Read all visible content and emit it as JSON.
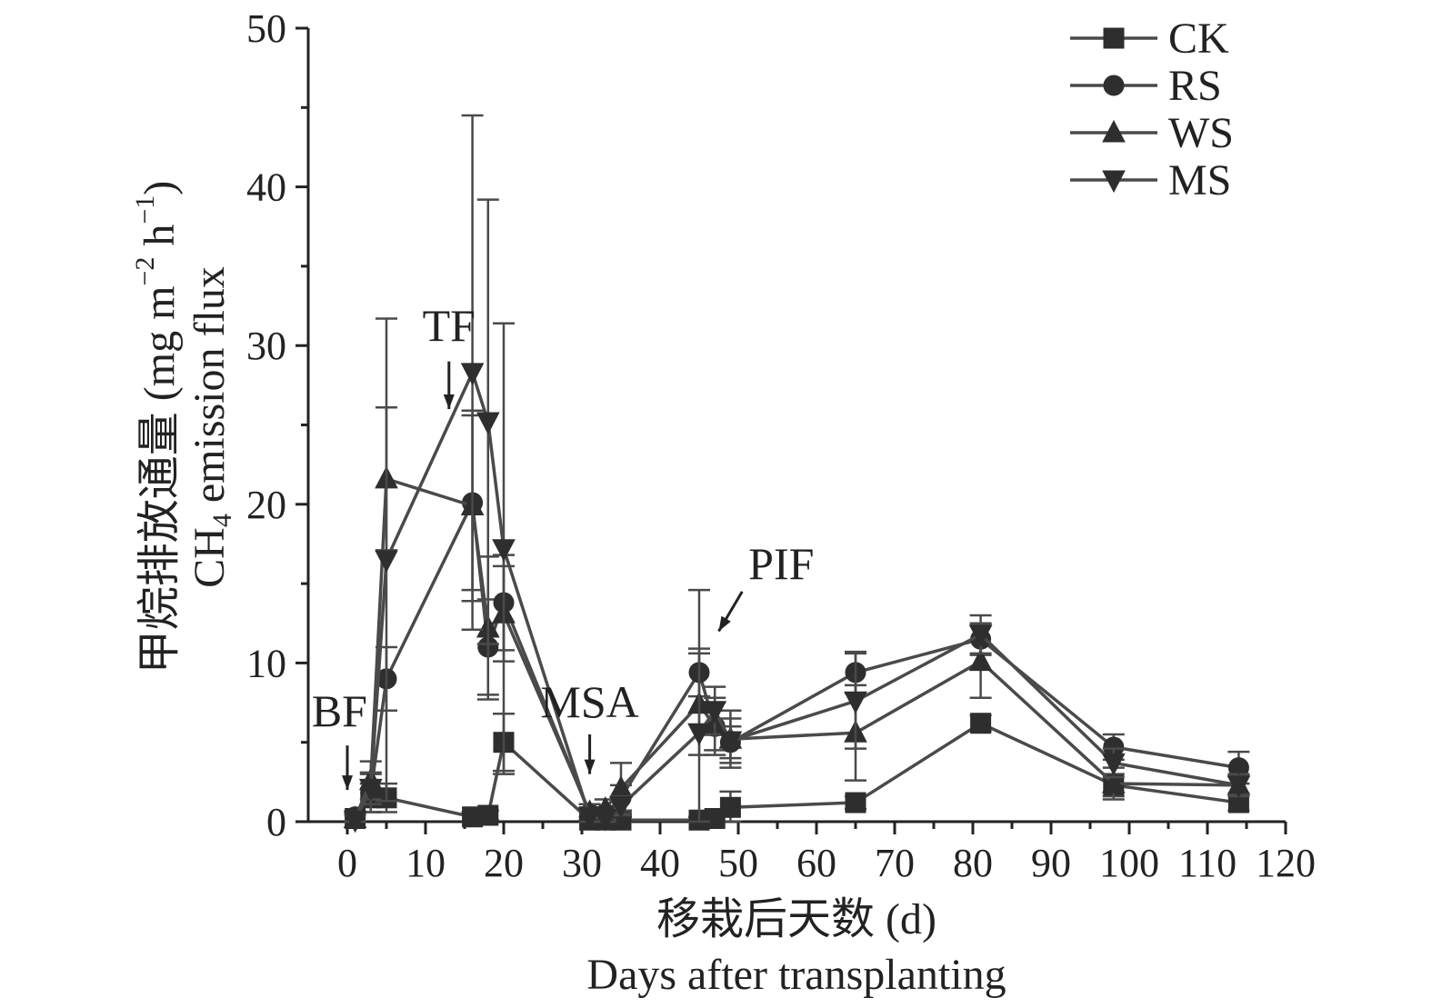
{
  "chart_data": {
    "type": "line",
    "xlabel_cn": "移栽后天数 (d)",
    "xlabel_en": "Days after transplanting",
    "ylabel_cn": "甲烷排放通量 (mg m",
    "ylabel_en": "CH",
    "ylabel_sub": "4",
    "ylabel_en_rest": " emission flux",
    "ylabel_sup1": "−2",
    "ylabel_mid": " h",
    "ylabel_sup2": "−1",
    "ylabel_close": ")",
    "xlim": [
      -5,
      120
    ],
    "ylim": [
      0,
      50
    ],
    "xticks": [
      0,
      10,
      20,
      30,
      40,
      50,
      60,
      70,
      80,
      90,
      100,
      110,
      120
    ],
    "yticks": [
      0,
      10,
      20,
      30,
      40,
      50
    ],
    "legend_position": "top-right",
    "series": [
      {
        "name": "CK",
        "marker": "square",
        "points": [
          {
            "x": 1,
            "y": 0.2,
            "err": 0.3
          },
          {
            "x": 3,
            "y": 1.5,
            "err": 0.9
          },
          {
            "x": 5,
            "y": 1.5,
            "err": 0.9
          },
          {
            "x": 16,
            "y": 0.3,
            "err": 0.3
          },
          {
            "x": 18,
            "y": 0.4,
            "err": 0.3
          },
          {
            "x": 20,
            "y": 5.0,
            "err": 1.8
          },
          {
            "x": 31,
            "y": 0.1,
            "err": 0.2
          },
          {
            "x": 33,
            "y": 0.1,
            "err": 0.2
          },
          {
            "x": 35,
            "y": 0.1,
            "err": 0.2
          },
          {
            "x": 45,
            "y": 0.1,
            "err": 0.2
          },
          {
            "x": 47,
            "y": 0.2,
            "err": 0.2
          },
          {
            "x": 49,
            "y": 0.9,
            "err": 1.0
          },
          {
            "x": 65,
            "y": 1.2,
            "err": 0.4
          },
          {
            "x": 81,
            "y": 6.2,
            "err": 0.5
          },
          {
            "x": 98,
            "y": 2.3,
            "err": 0.7
          },
          {
            "x": 114,
            "y": 1.2,
            "err": 0.5
          }
        ]
      },
      {
        "name": "RS",
        "marker": "circle",
        "points": [
          {
            "x": 1,
            "y": 0.3,
            "err": 0.3
          },
          {
            "x": 3,
            "y": 1.8,
            "err": 1.2
          },
          {
            "x": 5,
            "y": 9.0,
            "err": 2.0
          },
          {
            "x": 16,
            "y": 20.1,
            "err": 5.5
          },
          {
            "x": 18,
            "y": 11.0,
            "err": 3.0
          },
          {
            "x": 20,
            "y": 13.8,
            "err": 3.0
          },
          {
            "x": 31,
            "y": 0.5,
            "err": 0.4
          },
          {
            "x": 33,
            "y": 0.5,
            "err": 0.4
          },
          {
            "x": 35,
            "y": 1.5,
            "err": 0.8
          },
          {
            "x": 45,
            "y": 9.4,
            "err": 1.5
          },
          {
            "x": 47,
            "y": 6.0,
            "err": 1.5
          },
          {
            "x": 49,
            "y": 5.0,
            "err": 1.0
          },
          {
            "x": 65,
            "y": 9.4,
            "err": 1.3
          },
          {
            "x": 81,
            "y": 11.5,
            "err": 1.0
          },
          {
            "x": 98,
            "y": 4.7,
            "err": 0.8
          },
          {
            "x": 114,
            "y": 3.4,
            "err": 1.0
          }
        ]
      },
      {
        "name": "WS",
        "marker": "triangle-up",
        "points": [
          {
            "x": 1,
            "y": 0.2,
            "err": 0.3
          },
          {
            "x": 3,
            "y": 2.6,
            "err": 1.2
          },
          {
            "x": 5,
            "y": 21.6,
            "err": 4.5
          },
          {
            "x": 16,
            "y": 19.9,
            "err": 6.0
          },
          {
            "x": 18,
            "y": 12.2,
            "err": 4.5
          },
          {
            "x": 20,
            "y": 13.1,
            "err": 3.0
          },
          {
            "x": 31,
            "y": 0.6,
            "err": 0.5
          },
          {
            "x": 33,
            "y": 0.8,
            "err": 0.6
          },
          {
            "x": 35,
            "y": 2.1,
            "err": 1.6
          },
          {
            "x": 45,
            "y": 7.4,
            "err": 3.2
          },
          {
            "x": 47,
            "y": 6.0,
            "err": 1.8
          },
          {
            "x": 49,
            "y": 5.2,
            "err": 1.8
          },
          {
            "x": 65,
            "y": 5.6,
            "err": 3.0
          },
          {
            "x": 81,
            "y": 10.1,
            "err": 2.3
          },
          {
            "x": 98,
            "y": 2.4,
            "err": 1.0
          },
          {
            "x": 114,
            "y": 2.3,
            "err": 0.7
          }
        ]
      },
      {
        "name": "MS",
        "marker": "triangle-down",
        "points": [
          {
            "x": 1,
            "y": 0.1,
            "err": 0.3
          },
          {
            "x": 3,
            "y": 2.1,
            "err": 1.0
          },
          {
            "x": 5,
            "y": 16.5,
            "err": 15.2
          },
          {
            "x": 16,
            "y": 28.3,
            "err": 16.2
          },
          {
            "x": 18,
            "y": 25.2,
            "err": 14.0
          },
          {
            "x": 20,
            "y": 17.2,
            "err": 14.2
          },
          {
            "x": 31,
            "y": 0.3,
            "err": 0.3
          },
          {
            "x": 33,
            "y": 0.2,
            "err": 0.2
          },
          {
            "x": 35,
            "y": 1.0,
            "err": 0.6
          },
          {
            "x": 45,
            "y": 5.6,
            "err": 9.0
          },
          {
            "x": 47,
            "y": 7.0,
            "err": 1.5
          },
          {
            "x": 49,
            "y": 5.1,
            "err": 1.4
          },
          {
            "x": 65,
            "y": 7.6,
            "err": 3.0
          },
          {
            "x": 81,
            "y": 11.8,
            "err": 1.2
          },
          {
            "x": 98,
            "y": 3.7,
            "err": 0.9
          },
          {
            "x": 114,
            "y": 2.3,
            "err": 0.6
          }
        ]
      }
    ],
    "annotations": [
      {
        "label": "BF",
        "arrow_to": {
          "x": 0,
          "y": 2.0
        },
        "arrow_from": {
          "x": 0,
          "y": 4.8
        },
        "text_at": {
          "x": -1,
          "y": 6.0
        }
      },
      {
        "label": "TF",
        "arrow_to": {
          "x": 13,
          "y": 26.0
        },
        "arrow_from": {
          "x": 13,
          "y": 29.0
        },
        "text_at": {
          "x": 13,
          "y": 30.3
        }
      },
      {
        "label": "MSA",
        "arrow_to": {
          "x": 31,
          "y": 3.0
        },
        "arrow_from": {
          "x": 31,
          "y": 5.5
        },
        "text_at": {
          "x": 31,
          "y": 6.6
        }
      },
      {
        "label": "PIF",
        "arrow_to": {
          "x": 47.5,
          "y": 12.0
        },
        "arrow_from": {
          "x": 50.5,
          "y": 14.5
        },
        "text_at": {
          "x": 55.5,
          "y": 15.3
        }
      }
    ],
    "colors": {
      "line": "#4a4a4a",
      "marker": "#2e2e2e",
      "axis": "#222222"
    }
  }
}
